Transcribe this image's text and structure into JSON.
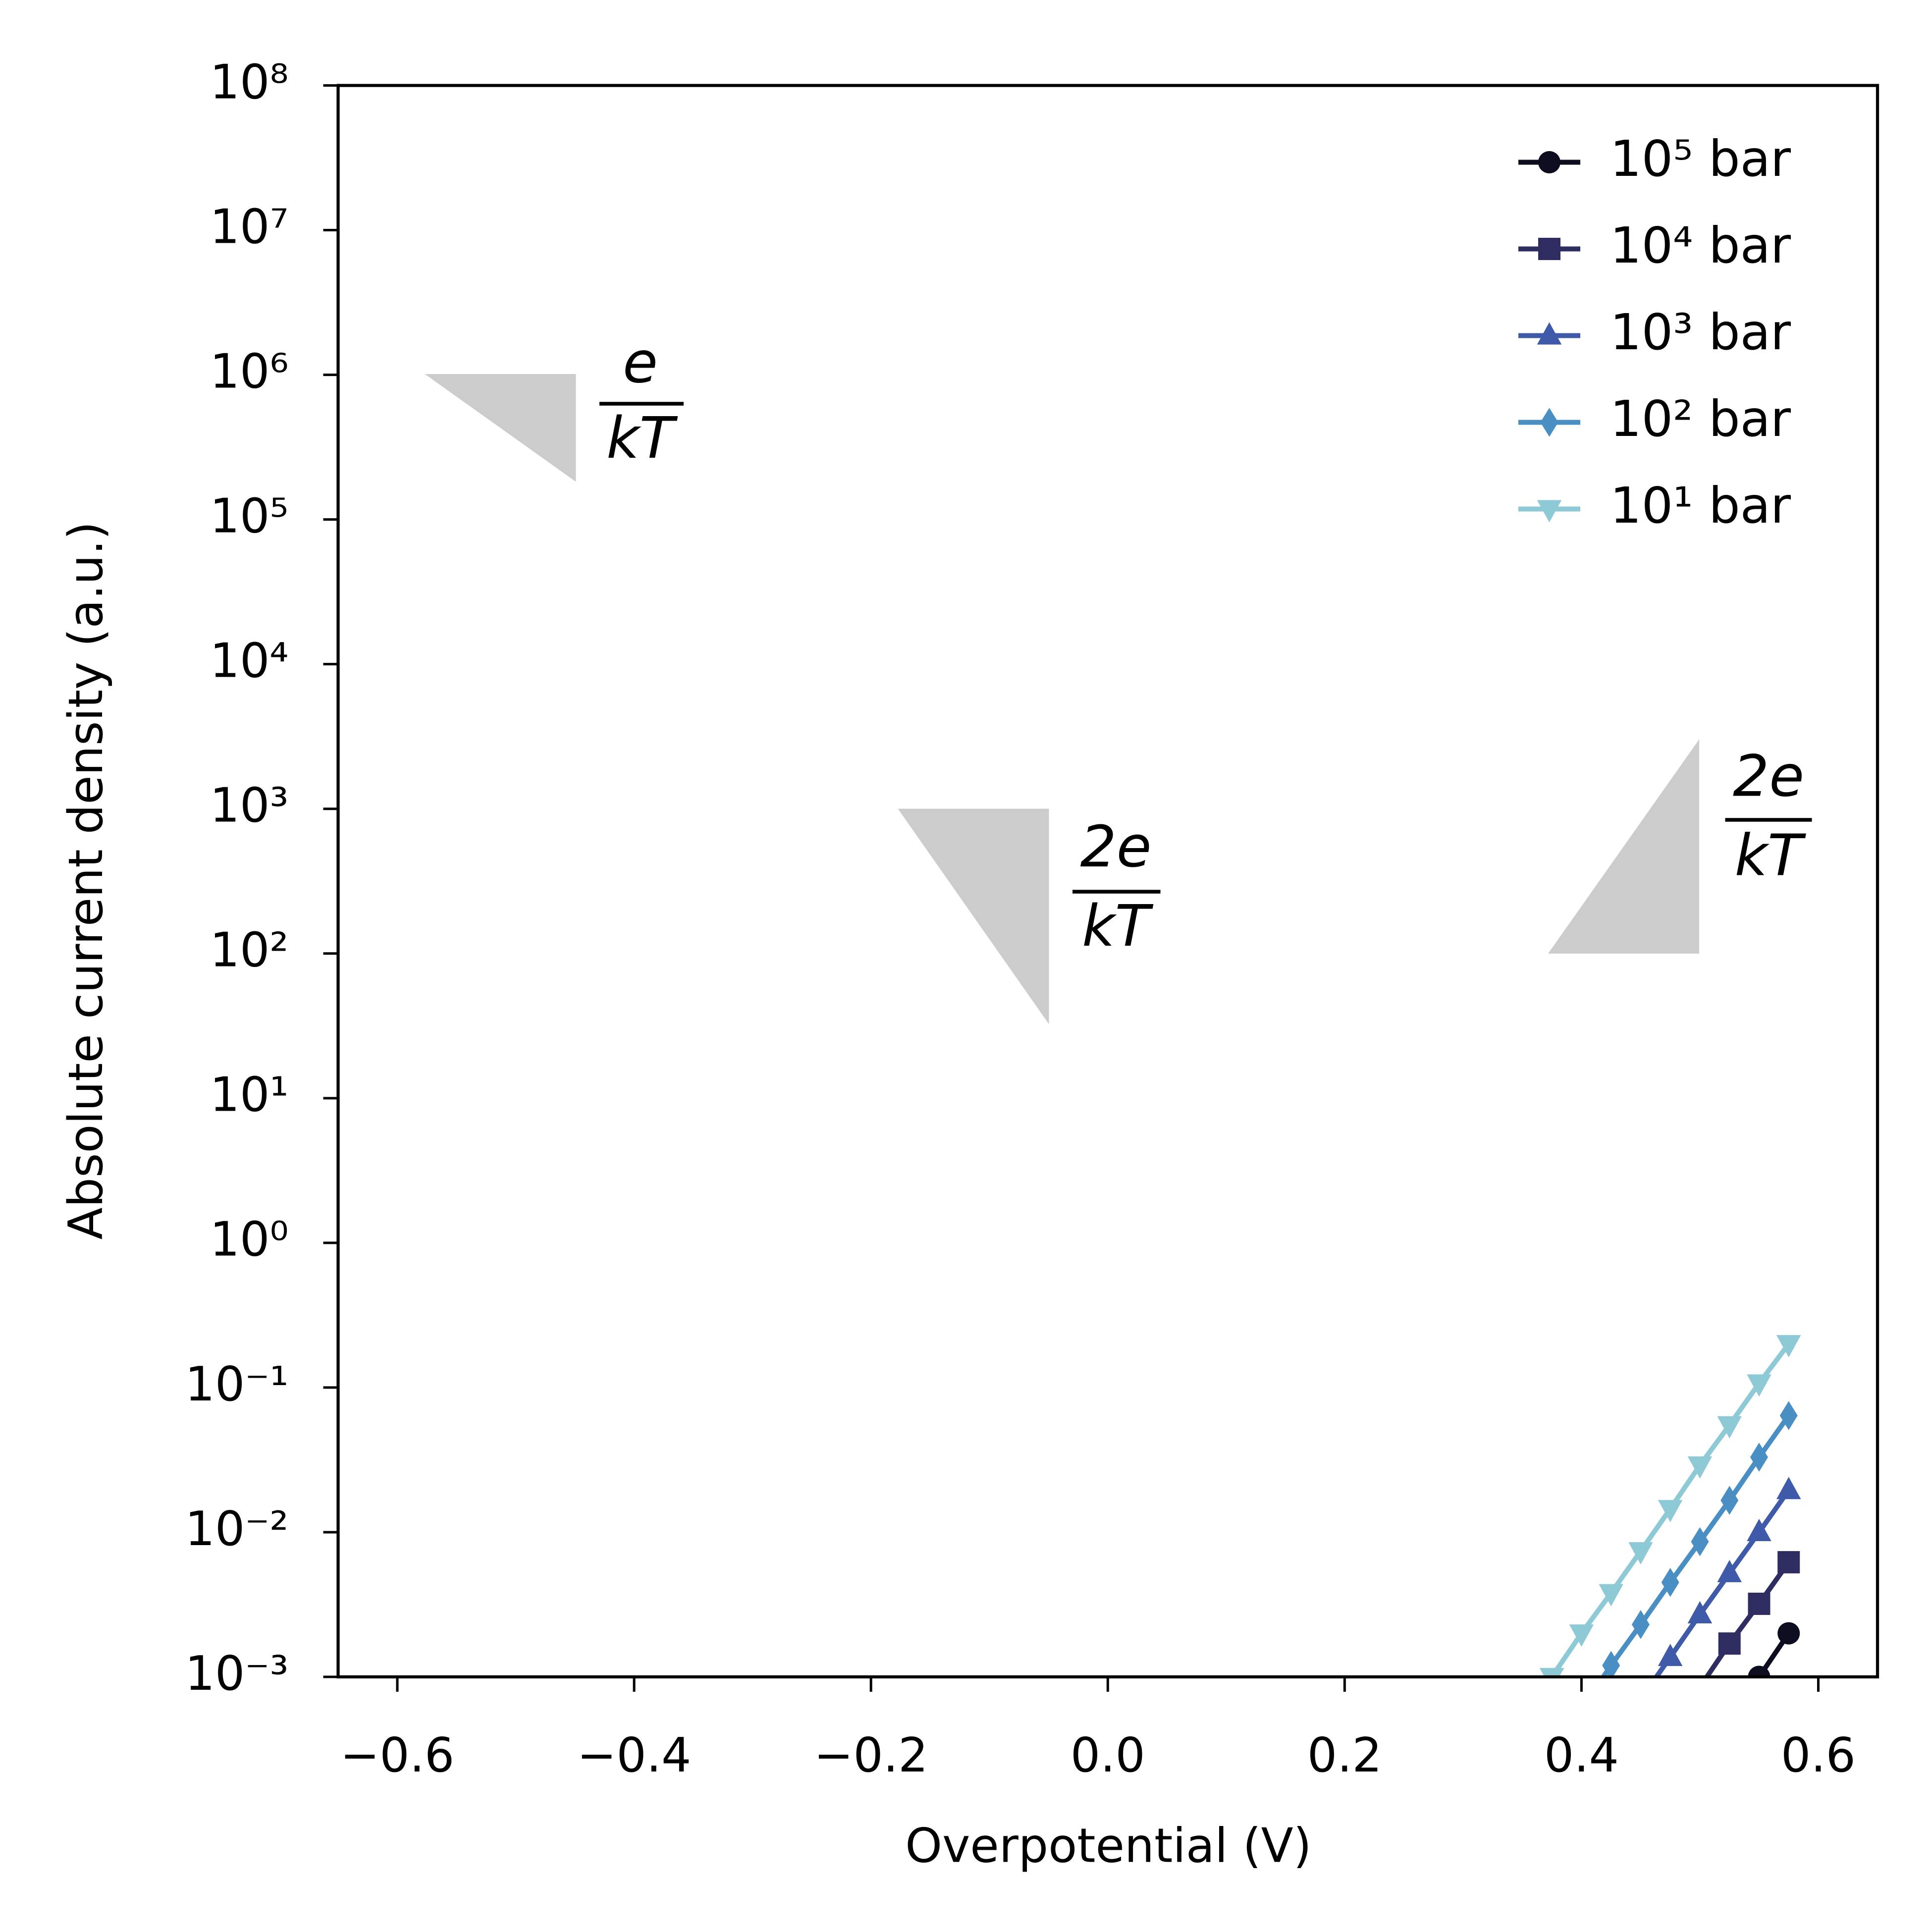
{
  "chart_data": {
    "type": "line",
    "x_label": "Overpotential (V)",
    "y_label": "Absolute current density (a.u.)",
    "log_y": true,
    "legend": "upper right",
    "x": [
      0.375,
      0.4,
      0.425,
      0.45,
      0.475,
      0.5,
      0.525,
      0.55,
      0.575
    ],
    "series": [
      {
        "name": "10⁵ bar",
        "color": "#0d0d1f",
        "marker": "circle",
        "values": [
          null,
          null,
          null,
          null,
          null,
          null,
          null,
          0.001,
          0.002
        ]
      },
      {
        "name": "10⁴ bar",
        "color": "#2e2c60",
        "marker": "square",
        "values": [
          null,
          null,
          null,
          null,
          null,
          0.00085,
          0.0017,
          0.0032,
          0.0062
        ]
      },
      {
        "name": "10³ bar",
        "color": "#3f5aa8",
        "marker": "triangle-up",
        "values": [
          null,
          null,
          null,
          0.0007,
          0.00137,
          0.0027,
          0.0052,
          0.01,
          0.0195
        ]
      },
      {
        "name": "10² bar",
        "color": "#4a8fc4",
        "marker": "diamond",
        "values": [
          null,
          0.0006,
          0.0012,
          0.0023,
          0.0045,
          0.0086,
          0.0166,
          0.033,
          0.064
        ]
      },
      {
        "name": "10¹ bar",
        "color": "#8ecad6",
        "marker": "triangle-down",
        "values": [
          0.001,
          0.002,
          0.0038,
          0.0074,
          0.0145,
          0.029,
          0.055,
          0.107,
          0.2
        ]
      }
    ],
    "xlim": [
      -0.65,
      0.65
    ],
    "xticks": [
      {
        "value": -0.6,
        "label": "−0.6"
      },
      {
        "value": -0.4,
        "label": "−0.4"
      },
      {
        "value": -0.2,
        "label": "−0.2"
      },
      {
        "value": 0,
        "label": "0.0"
      },
      0.2,
      0.4,
      0.6
    ],
    "ylim": [
      0.001,
      100000000
    ],
    "yticks": [
      {
        "value": 0.001,
        "label": "10⁻³"
      },
      {
        "value": 0.01,
        "label": "10⁻²"
      },
      {
        "value": 0.1,
        "label": "10⁻¹"
      },
      {
        "value": 1,
        "label": "10⁰"
      },
      {
        "value": 10,
        "label": "10¹"
      },
      {
        "value": 100,
        "label": "10²"
      },
      {
        "value": 1000,
        "label": "10³"
      },
      {
        "value": 10000,
        "label": "10⁴"
      },
      {
        "value": 100000,
        "label": "10⁵"
      },
      {
        "value": 1000000,
        "label": "10⁶"
      },
      {
        "value": 10000000,
        "label": "10⁷"
      },
      {
        "value": 100000000,
        "label": "10⁸"
      }
    ],
    "annotations": [
      {
        "numerator": "e",
        "denominator": "kT"
      },
      {
        "numerator": "2e",
        "denominator": "kT"
      },
      {
        "numerator": "2e",
        "denominator": "kT"
      }
    ]
  }
}
